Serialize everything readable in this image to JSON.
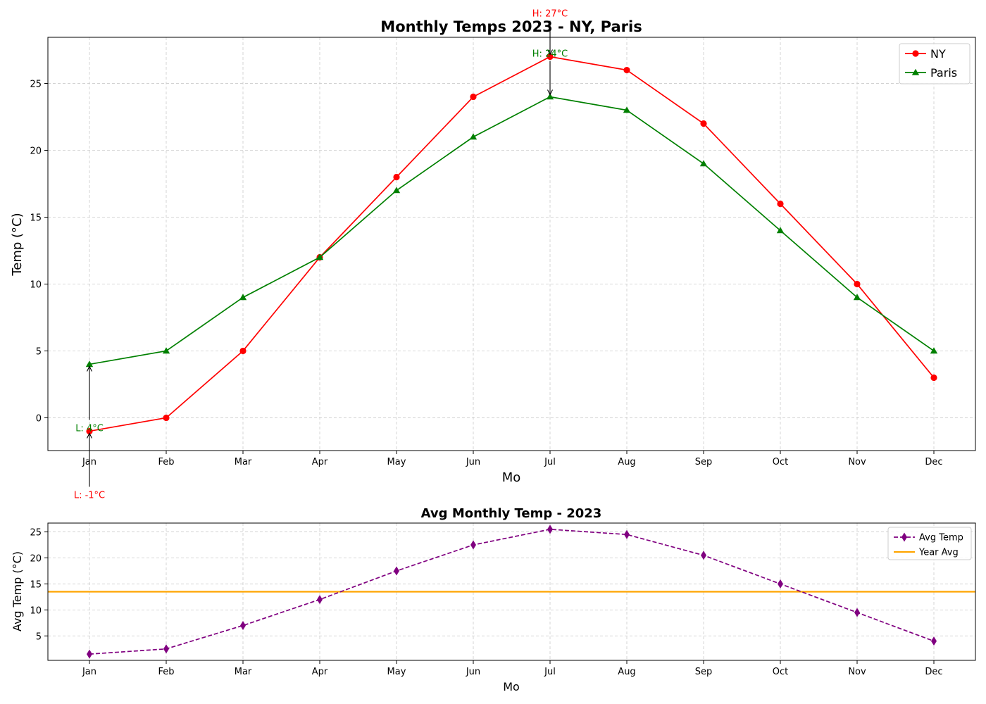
{
  "colors": {
    "ny": "#ff0000",
    "paris": "#008000",
    "avg": "#800080",
    "year_avg": "#ffa500",
    "grid": "#cccccc"
  },
  "chart_data": [
    {
      "type": "line",
      "title": "Monthly Temps 2023 - NY, Paris",
      "xlabel": "Mo",
      "ylabel": "Temp (°C)",
      "categories": [
        "Jan",
        "Feb",
        "Mar",
        "Apr",
        "May",
        "Jun",
        "Jul",
        "Aug",
        "Sep",
        "Oct",
        "Nov",
        "Dec"
      ],
      "ylim": [
        -2.45,
        28.45
      ],
      "yticks": [
        0,
        5,
        10,
        15,
        20,
        25
      ],
      "grid": true,
      "legend_position": "top-right",
      "series": [
        {
          "name": "NY",
          "color": "#ff0000",
          "marker": "circle",
          "linestyle": "solid",
          "values": [
            -1,
            0,
            5,
            12,
            18,
            24,
            27,
            26,
            22,
            16,
            10,
            3
          ]
        },
        {
          "name": "Paris",
          "color": "#008000",
          "marker": "triangle",
          "linestyle": "solid",
          "values": [
            4,
            5,
            9,
            12,
            17,
            21,
            24,
            23,
            19,
            14,
            9,
            5
          ]
        }
      ],
      "annotations": [
        {
          "text": "H: 27°C",
          "series": "NY",
          "x": "Jul",
          "y": 27,
          "color": "#ff0000"
        },
        {
          "text": "L: -1°C",
          "series": "NY",
          "x": "Jan",
          "y": -1,
          "color": "#ff0000"
        },
        {
          "text": "H: 24°C",
          "series": "Paris",
          "x": "Jul",
          "y": 24,
          "color": "#008000"
        },
        {
          "text": "L: 4°C",
          "series": "Paris",
          "x": "Jan",
          "y": 4,
          "color": "#008000"
        }
      ]
    },
    {
      "type": "line",
      "title": "Avg Monthly Temp - 2023",
      "xlabel": "Mo",
      "ylabel": "Avg Temp (°C)",
      "categories": [
        "Jan",
        "Feb",
        "Mar",
        "Apr",
        "May",
        "Jun",
        "Jul",
        "Aug",
        "Sep",
        "Oct",
        "Nov",
        "Dec"
      ],
      "ylim": [
        0.3,
        26.7
      ],
      "yticks": [
        5,
        10,
        15,
        20,
        25
      ],
      "grid": true,
      "legend_position": "top-right",
      "series": [
        {
          "name": "Avg Temp",
          "color": "#800080",
          "marker": "diamond",
          "linestyle": "dashed",
          "values": [
            1.5,
            2.5,
            7,
            12,
            17.5,
            22.5,
            25.5,
            24.5,
            20.5,
            15,
            9.5,
            4
          ]
        }
      ],
      "reference_lines": [
        {
          "name": "Year Avg",
          "color": "#ffa500",
          "y": 13.5
        }
      ]
    }
  ]
}
